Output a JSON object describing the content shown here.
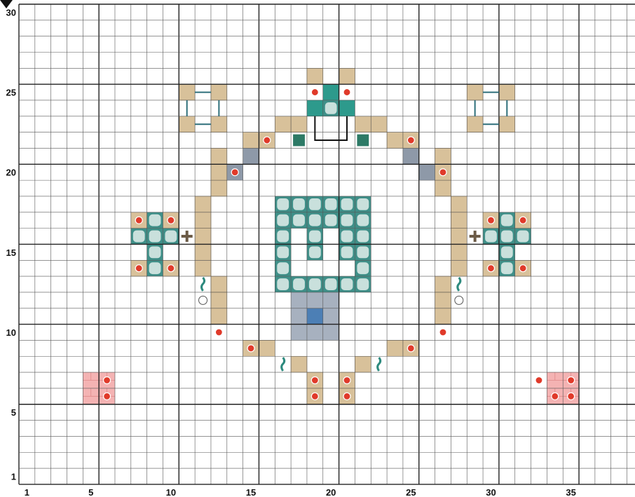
{
  "grid": {
    "cols": 39,
    "rows": 30,
    "x_labels": [
      "1",
      "5",
      "10",
      "15",
      "20",
      "25",
      "30",
      "35"
    ],
    "y_labels": [
      "1",
      "5",
      "10",
      "15",
      "20",
      "25",
      "30"
    ],
    "x_label_cols": [
      1,
      5,
      10,
      15,
      20,
      25,
      30,
      35
    ],
    "y_label_rows": [
      1,
      5,
      10,
      15,
      20,
      25,
      30
    ],
    "major_every": 5,
    "major_offset": 0
  },
  "colors": {
    "sand": "#d8c19a",
    "sand_dark": "#b89a6c",
    "prismarine": "#c9e0dc",
    "prismarine_edge": "#3f8f88",
    "prismarine_dark": "#2d9a8c",
    "stone": "#a7b1bf",
    "stone_dark": "#8e99a8",
    "blue": "#4c7fb5",
    "brick": "#f4b3b3",
    "line": "#2e6f7a",
    "arrow_fill": "#ffffff",
    "arrow_ring": "#e03a2a"
  },
  "icons": [
    "arrow-marker-icon",
    "sea-lantern-icon",
    "kelp-icon",
    "dispenser-face-icon",
    "trapdoor-icon"
  ],
  "blocks": {
    "sand": [
      [
        11,
        25
      ],
      [
        13,
        25
      ],
      [
        11,
        23
      ],
      [
        13,
        23
      ],
      [
        29,
        25
      ],
      [
        31,
        25
      ],
      [
        29,
        23
      ],
      [
        31,
        23
      ],
      [
        17,
        23
      ],
      [
        18,
        23
      ],
      [
        22,
        23
      ],
      [
        23,
        23
      ],
      [
        15,
        22
      ],
      [
        16,
        22
      ],
      [
        24,
        22
      ],
      [
        25,
        22
      ],
      [
        13,
        21
      ],
      [
        27,
        21
      ],
      [
        13,
        20
      ],
      [
        27,
        20
      ],
      [
        13,
        19
      ],
      [
        27,
        19
      ],
      [
        12,
        18
      ],
      [
        28,
        18
      ],
      [
        12,
        17
      ],
      [
        28,
        17
      ],
      [
        12,
        16
      ],
      [
        28,
        16
      ],
      [
        12,
        15
      ],
      [
        28,
        15
      ],
      [
        12,
        14
      ],
      [
        28,
        14
      ],
      [
        13,
        13
      ],
      [
        27,
        13
      ],
      [
        13,
        12
      ],
      [
        27,
        12
      ],
      [
        13,
        11
      ],
      [
        27,
        11
      ],
      [
        16,
        9
      ],
      [
        15,
        9
      ],
      [
        24,
        9
      ],
      [
        25,
        9
      ],
      [
        18,
        8
      ],
      [
        22,
        8
      ],
      [
        19,
        7
      ],
      [
        21,
        7
      ],
      [
        19,
        6
      ],
      [
        21,
        6
      ],
      [
        8,
        17
      ],
      [
        10,
        17
      ],
      [
        8,
        14
      ],
      [
        10,
        14
      ],
      [
        32,
        17
      ],
      [
        30,
        17
      ],
      [
        32,
        14
      ],
      [
        30,
        14
      ],
      [
        19,
        26
      ],
      [
        21,
        26
      ]
    ],
    "stone": [
      [
        15,
        21
      ],
      [
        14,
        20
      ],
      [
        25,
        21
      ],
      [
        26,
        20
      ]
    ],
    "prismarine": [
      [
        17,
        18
      ],
      [
        18,
        18
      ],
      [
        19,
        18
      ],
      [
        20,
        18
      ],
      [
        21,
        18
      ],
      [
        22,
        18
      ],
      [
        17,
        17
      ],
      [
        22,
        17
      ],
      [
        17,
        16
      ],
      [
        22,
        16
      ],
      [
        17,
        15
      ],
      [
        22,
        15
      ],
      [
        17,
        14
      ],
      [
        22,
        14
      ],
      [
        17,
        13
      ],
      [
        18,
        13
      ],
      [
        19,
        13
      ],
      [
        20,
        13
      ],
      [
        21,
        13
      ],
      [
        22,
        13
      ],
      [
        18,
        17
      ],
      [
        19,
        17
      ],
      [
        20,
        17
      ],
      [
        21,
        17
      ],
      [
        19,
        16
      ],
      [
        21,
        16
      ],
      [
        19,
        15
      ],
      [
        21,
        15
      ],
      [
        9,
        17
      ],
      [
        9,
        16
      ],
      [
        8,
        16
      ],
      [
        10,
        16
      ],
      [
        9,
        15
      ],
      [
        9,
        14
      ],
      [
        31,
        17
      ],
      [
        31,
        16
      ],
      [
        30,
        16
      ],
      [
        32,
        16
      ],
      [
        31,
        15
      ],
      [
        31,
        14
      ],
      [
        20,
        24
      ]
    ],
    "prismarine_dark": [
      [
        19,
        24
      ],
      [
        21,
        24
      ],
      [
        20,
        25
      ]
    ],
    "stone_grey": [
      [
        18,
        12
      ],
      [
        19,
        12
      ],
      [
        20,
        12
      ],
      [
        18,
        11
      ],
      [
        20,
        11
      ],
      [
        18,
        10
      ],
      [
        19,
        10
      ],
      [
        20,
        10
      ]
    ],
    "blue": [
      [
        19,
        11
      ]
    ],
    "brick": [
      [
        5,
        7
      ],
      [
        6,
        7
      ],
      [
        5,
        6
      ],
      [
        6,
        6
      ],
      [
        34,
        7
      ],
      [
        35,
        7
      ],
      [
        34,
        6
      ],
      [
        35,
        6
      ]
    ]
  }
}
